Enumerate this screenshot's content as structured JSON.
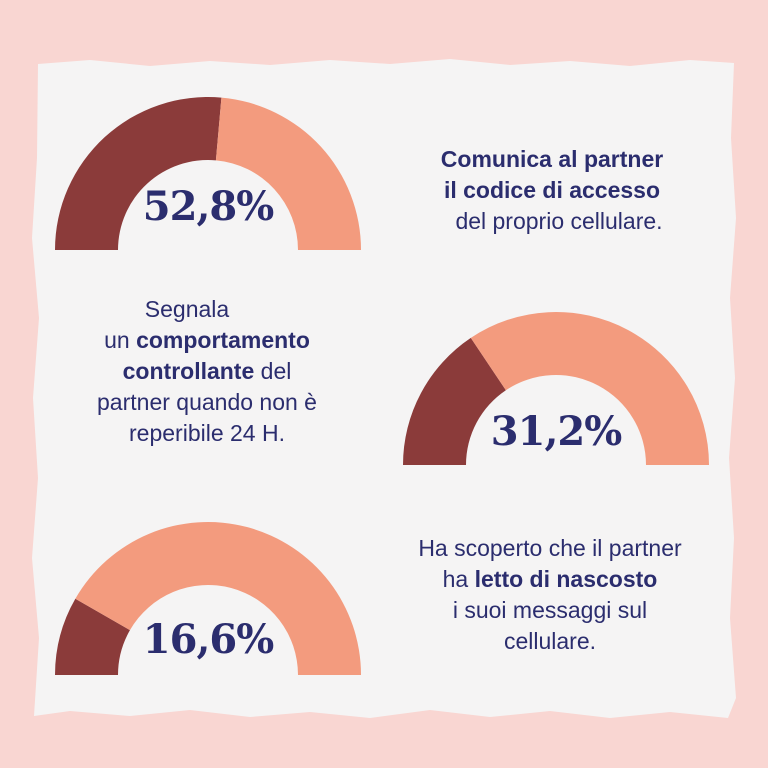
{
  "colors": {
    "background": "#f9d6d2",
    "paper": "#f5f4f4",
    "share": "#8b3b3a",
    "remainder": "#f39b7e",
    "text": "#2b2d6e"
  },
  "chart_data": [
    {
      "type": "pie",
      "style": "half-donut-gauge",
      "value_percent": 52.8,
      "value_label": "52,8%",
      "caption": [
        "Comunica al partner",
        "il codice di accesso",
        "del proprio cellulare."
      ]
    },
    {
      "type": "pie",
      "style": "half-donut-gauge",
      "value_percent": 31.2,
      "value_label": "31,2%",
      "caption": [
        "Segnala",
        "un comportamento",
        "controllante del",
        "partner quando non è",
        "reperibile 24 H."
      ]
    },
    {
      "type": "pie",
      "style": "half-donut-gauge",
      "value_percent": 16.6,
      "value_label": "16,6%",
      "caption": [
        "Ha scoperto che il partner",
        "ha letto di nascosto",
        "i suoi messaggi sul",
        "cellulare."
      ]
    }
  ],
  "captions": {
    "c1": {
      "l1": "Comunica al partner",
      "l2": "il codice di accesso",
      "l3": "del proprio cellulare."
    },
    "c2": {
      "l1": "Segnala",
      "l2a": "un ",
      "l2b": "comportamento",
      "l3a": "controllante",
      "l3b": " del",
      "l4": "partner quando non è",
      "l5": "reperibile 24 H."
    },
    "c3": {
      "l1": "Ha scoperto che il partner",
      "l2a": "ha ",
      "l2b": "letto di nascosto",
      "l3": "i suoi messaggi sul",
      "l4": "cellulare."
    }
  }
}
